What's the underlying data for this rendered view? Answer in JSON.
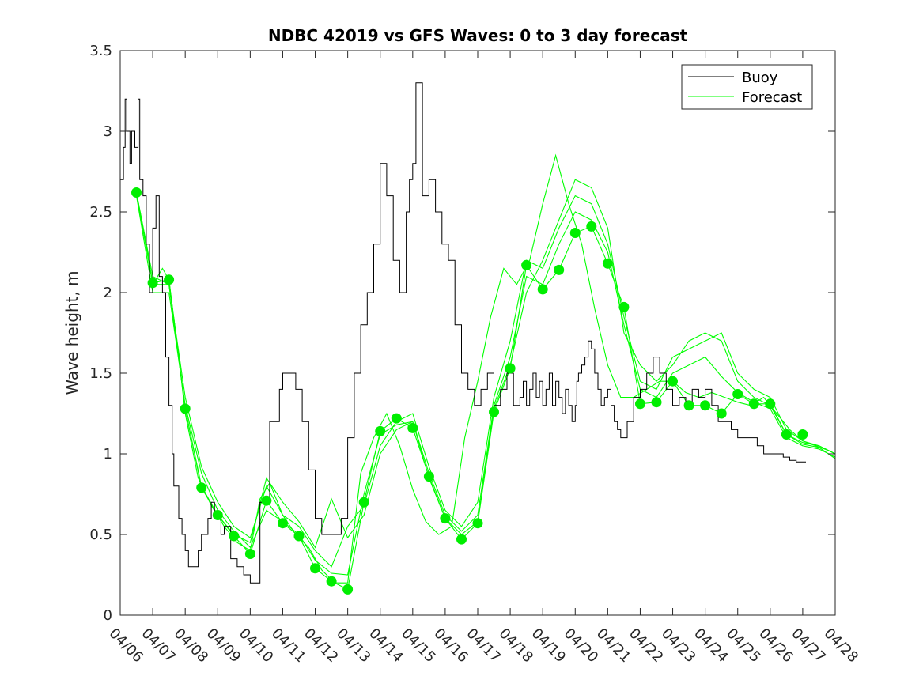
{
  "chart_data": {
    "type": "line",
    "title": "NDBC 42019 vs GFS Waves: 0 to 3 day forecast",
    "xlabel": "",
    "ylabel": "Wave height, m",
    "x_ticks": [
      "04/06",
      "04/07",
      "04/08",
      "04/09",
      "04/10",
      "04/11",
      "04/12",
      "04/13",
      "04/14",
      "04/15",
      "04/16",
      "04/17",
      "04/18",
      "04/19",
      "04/20",
      "04/21",
      "04/22",
      "04/23",
      "04/24",
      "04/25",
      "04/26",
      "04/27",
      "04/28"
    ],
    "xlim": [
      0,
      22
    ],
    "x_unit": "days since 04/06",
    "ylim": [
      0,
      3.5
    ],
    "y_ticks": [
      "0",
      "0.5",
      "1",
      "1.5",
      "2",
      "2.5",
      "3",
      "3.5"
    ],
    "grid": false,
    "legend": {
      "placement": "top-right",
      "entries": [
        "Buoy",
        "Forecast"
      ]
    },
    "colors": {
      "buoy": "#000000",
      "forecast": "#00ff00",
      "dots": "#00ee00"
    },
    "series": [
      {
        "name": "Buoy",
        "x": [
          0,
          0.1,
          0.15,
          0.2,
          0.3,
          0.35,
          0.45,
          0.55,
          0.6,
          0.7,
          0.8,
          0.9,
          1.0,
          1.1,
          1.2,
          1.3,
          1.4,
          1.5,
          1.6,
          1.65,
          1.8,
          1.9,
          2.0,
          2.1,
          2.2,
          2.3,
          2.4,
          2.5,
          2.6,
          2.7,
          2.8,
          2.9,
          3.0,
          3.1,
          3.2,
          3.4,
          3.6,
          3.8,
          4.0,
          4.3,
          4.6,
          4.9,
          5.0,
          5.2,
          5.4,
          5.6,
          5.8,
          6.0,
          6.2,
          6.4,
          6.6,
          6.8,
          7.0,
          7.2,
          7.4,
          7.6,
          7.8,
          8.0,
          8.2,
          8.4,
          8.6,
          8.8,
          8.9,
          9.0,
          9.1,
          9.3,
          9.5,
          9.7,
          9.9,
          10.1,
          10.3,
          10.5,
          10.7,
          10.9,
          11.1,
          11.3,
          11.5,
          11.7,
          11.9,
          12.1,
          12.3,
          12.4,
          12.5,
          12.6,
          12.7,
          12.8,
          12.9,
          13.0,
          13.1,
          13.2,
          13.3,
          13.4,
          13.5,
          13.6,
          13.7,
          13.8,
          13.9,
          14.0,
          14.05,
          14.1,
          14.2,
          14.3,
          14.4,
          14.5,
          14.6,
          14.7,
          14.8,
          14.9,
          15.0,
          15.1,
          15.2,
          15.3,
          15.4,
          15.6,
          15.8,
          16.0,
          16.2,
          16.4,
          16.6,
          16.8,
          17.0,
          17.2,
          17.4,
          17.6,
          17.8,
          18.0,
          18.2,
          18.4,
          18.6,
          18.8,
          19.0,
          19.2,
          19.4,
          19.6,
          19.8,
          20.0,
          20.2,
          20.4,
          20.6,
          20.8,
          21.0,
          21.1
        ],
        "y": [
          2.7,
          2.9,
          3.2,
          3.0,
          2.8,
          3.0,
          2.9,
          3.2,
          2.7,
          2.6,
          2.3,
          2.0,
          2.4,
          2.6,
          2.1,
          2.0,
          1.6,
          1.3,
          1.0,
          0.8,
          0.6,
          0.5,
          0.4,
          0.3,
          0.3,
          0.3,
          0.4,
          0.5,
          0.5,
          0.6,
          0.7,
          0.6,
          0.6,
          0.5,
          0.55,
          0.35,
          0.3,
          0.25,
          0.2,
          0.7,
          1.2,
          1.4,
          1.5,
          1.5,
          1.4,
          1.2,
          0.9,
          0.6,
          0.5,
          0.5,
          0.5,
          0.6,
          1.1,
          1.5,
          1.8,
          2.0,
          2.3,
          2.8,
          2.6,
          2.2,
          2.0,
          2.5,
          2.7,
          2.8,
          3.3,
          2.6,
          2.7,
          2.5,
          2.3,
          2.2,
          1.8,
          1.5,
          1.4,
          1.3,
          1.4,
          1.5,
          1.3,
          1.4,
          1.5,
          1.3,
          1.35,
          1.45,
          1.3,
          1.4,
          1.5,
          1.35,
          1.45,
          1.3,
          1.4,
          1.5,
          1.3,
          1.45,
          1.35,
          1.25,
          1.4,
          1.3,
          1.2,
          1.3,
          1.45,
          1.5,
          1.55,
          1.6,
          1.7,
          1.65,
          1.5,
          1.4,
          1.3,
          1.35,
          1.4,
          1.3,
          1.2,
          1.15,
          1.1,
          1.2,
          1.35,
          1.4,
          1.5,
          1.6,
          1.5,
          1.4,
          1.3,
          1.35,
          1.3,
          1.4,
          1.35,
          1.4,
          1.3,
          1.2,
          1.2,
          1.15,
          1.1,
          1.1,
          1.1,
          1.05,
          1.0,
          1.0,
          1.0,
          0.98,
          0.96,
          0.95,
          0.95,
          0.95
        ]
      },
      {
        "name": "Forecast",
        "x": [
          0.5,
          0.7,
          1.0,
          1.2,
          1.5,
          1.8,
          2.0,
          2.3,
          2.5,
          3.0,
          3.5,
          4.0,
          4.5,
          5.0,
          5.5,
          6.0,
          6.5,
          7.0,
          7.5,
          8.0,
          8.5,
          9.0,
          9.5,
          10.0,
          10.5,
          11.0,
          11.5,
          12.0,
          12.5,
          13.0,
          13.5,
          14.0,
          14.5,
          15.0,
          15.5,
          16.0,
          16.5,
          17.0,
          17.5,
          18.0,
          18.5,
          19.0,
          19.5,
          20.0,
          20.5,
          21.0,
          21.5,
          22.0
        ],
        "y": [
          2.62,
          2.4,
          2.06,
          2.1,
          2.08,
          1.7,
          1.28,
          0.95,
          0.79,
          0.62,
          0.49,
          0.38,
          0.71,
          0.57,
          0.49,
          0.29,
          0.21,
          0.16,
          0.7,
          1.14,
          1.22,
          1.16,
          0.86,
          0.6,
          0.47,
          0.57,
          1.26,
          1.53,
          2.17,
          2.02,
          2.14,
          2.37,
          2.41,
          2.18,
          1.91,
          1.31,
          1.32,
          1.45,
          1.3,
          1.3,
          1.25,
          1.37,
          1.31,
          1.31,
          1.12,
          1.07,
          1.05,
          1.0
        ]
      }
    ],
    "forecast_runs": [
      {
        "x": [
          0.5,
          0.8,
          1.0,
          1.3,
          1.5,
          1.8,
          2.0,
          2.4,
          2.8,
          3.2,
          3.6,
          4.0,
          4.3,
          4.6,
          5.0,
          5.4,
          5.8,
          6.2,
          6.6,
          7.0,
          7.4,
          7.8,
          8.2,
          8.6,
          9.0,
          9.4,
          9.8,
          10.2,
          10.6,
          11.0,
          11.4,
          11.8,
          12.2,
          12.6,
          13.0,
          13.4,
          13.8,
          14.2,
          14.6,
          15.0,
          15.4,
          15.8,
          16.2,
          16.6,
          17.0,
          17.4,
          17.8,
          18.2,
          18.6,
          19.0,
          19.4,
          19.8,
          20.2,
          20.6,
          21.0,
          21.4,
          21.8,
          22.0
        ],
        "y": [
          2.62,
          2.3,
          2.05,
          2.15,
          2.08,
          1.6,
          1.25,
          0.85,
          0.68,
          0.55,
          0.45,
          0.4,
          0.72,
          0.82,
          0.62,
          0.5,
          0.42,
          0.28,
          0.2,
          0.2,
          0.88,
          1.1,
          1.25,
          1.05,
          0.78,
          0.58,
          0.5,
          0.55,
          1.1,
          1.45,
          1.85,
          2.15,
          2.05,
          2.2,
          2.55,
          2.85,
          2.55,
          2.3,
          1.9,
          1.55,
          1.35,
          1.35,
          1.4,
          1.45,
          1.45,
          1.38,
          1.35,
          1.38,
          1.35,
          1.32,
          1.3,
          1.35,
          1.25,
          1.15,
          1.08,
          1.05,
          1.02,
          1.0
        ]
      },
      {
        "x": [
          0.5,
          1.0,
          1.5,
          2.0,
          2.5,
          3.0,
          3.5,
          4.0,
          4.5,
          5.0,
          5.5,
          6.0,
          6.5,
          7.0,
          7.5,
          8.0,
          8.5,
          9.0,
          9.5,
          10.0,
          10.5,
          11.0,
          11.5,
          12.0,
          12.5,
          13.0,
          13.5,
          14.0,
          14.5,
          15.0,
          15.5,
          16.0,
          16.5,
          17.0,
          17.5,
          18.0,
          18.5,
          19.0,
          19.5,
          20.0,
          20.5,
          21.0,
          21.5,
          22.0
        ],
        "y": [
          2.6,
          2.0,
          2.0,
          1.3,
          0.88,
          0.65,
          0.52,
          0.42,
          0.65,
          0.58,
          0.5,
          0.34,
          0.26,
          0.25,
          0.75,
          1.12,
          1.18,
          1.2,
          0.88,
          0.62,
          0.52,
          0.62,
          1.3,
          1.6,
          2.1,
          2.05,
          2.3,
          2.5,
          2.45,
          2.25,
          1.8,
          1.4,
          1.35,
          1.5,
          1.55,
          1.6,
          1.48,
          1.38,
          1.32,
          1.28,
          1.1,
          1.05,
          1.03,
          0.98
        ]
      },
      {
        "x": [
          0.5,
          1.0,
          1.5,
          2.0,
          2.5,
          3.0,
          3.5,
          4.0,
          4.5,
          5.0,
          5.5,
          6.0,
          6.5,
          7.0,
          7.5,
          8.0,
          8.5,
          9.0,
          9.5,
          10.0,
          10.5,
          11.0,
          11.5,
          12.0,
          12.5,
          13.0,
          13.5,
          14.0,
          14.5,
          15.0,
          15.5,
          16.0,
          16.5,
          17.0,
          17.5,
          18.0,
          18.5,
          19.0,
          19.5,
          20.0,
          20.5,
          21.0,
          21.5,
          22.0
        ],
        "y": [
          2.62,
          2.1,
          2.05,
          1.35,
          0.92,
          0.7,
          0.55,
          0.48,
          0.8,
          0.62,
          0.55,
          0.4,
          0.3,
          0.55,
          0.68,
          1.05,
          1.2,
          1.25,
          0.92,
          0.65,
          0.55,
          0.7,
          1.35,
          1.7,
          2.2,
          2.15,
          2.4,
          2.6,
          2.55,
          2.3,
          1.85,
          1.45,
          1.4,
          1.6,
          1.65,
          1.7,
          1.75,
          1.5,
          1.4,
          1.35,
          1.15,
          1.08,
          1.05,
          1.0
        ]
      },
      {
        "x": [
          0.5,
          1.0,
          1.5,
          2.0,
          2.5,
          3.0,
          3.5,
          4.0,
          4.5,
          5.0,
          5.5,
          6.0,
          6.5,
          7.0,
          7.5,
          8.0,
          8.5,
          9.0,
          9.5,
          10.0,
          10.5,
          11.0,
          11.5,
          12.0,
          12.5,
          13.0,
          13.5,
          14.0,
          14.5,
          15.0,
          15.5,
          16.0,
          16.5,
          17.0,
          17.5,
          18.0,
          18.5,
          19.0,
          19.5,
          20.0,
          20.5,
          21.0,
          21.5,
          22.0
        ],
        "y": [
          2.62,
          2.05,
          2.05,
          1.28,
          0.8,
          0.62,
          0.5,
          0.45,
          0.85,
          0.7,
          0.58,
          0.42,
          0.72,
          0.48,
          0.62,
          1.0,
          1.15,
          1.2,
          0.85,
          0.6,
          0.5,
          0.58,
          1.28,
          1.55,
          2.0,
          2.2,
          2.45,
          2.7,
          2.65,
          2.4,
          1.75,
          1.55,
          1.45,
          1.55,
          1.7,
          1.75,
          1.7,
          1.45,
          1.35,
          1.3,
          1.12,
          1.06,
          1.04,
          0.97
        ]
      },
      {
        "x": [
          0.5,
          1.0,
          1.5,
          2.0,
          2.5,
          3.0,
          3.5,
          4.0,
          4.5,
          5.0,
          5.5,
          6.0,
          6.5,
          7.0,
          7.5,
          8.0,
          8.5,
          9.0,
          9.5,
          10.0,
          10.5,
          11.0,
          11.5,
          12.0,
          12.5,
          13.0,
          13.5,
          14.0,
          14.5,
          15.0,
          15.5,
          16.0,
          16.5,
          17.0,
          17.5,
          18.0,
          18.5,
          19.0,
          19.5,
          20.0,
          20.5,
          21.0,
          21.5,
          22.0
        ],
        "y": [
          2.62,
          2.06,
          2.08,
          1.28,
          0.79,
          0.62,
          0.49,
          0.38,
          0.71,
          0.57,
          0.49,
          0.29,
          0.21,
          0.16,
          0.7,
          1.14,
          1.22,
          1.16,
          0.86,
          0.6,
          0.47,
          0.57,
          1.26,
          1.53,
          2.17,
          2.02,
          2.14,
          2.37,
          2.41,
          2.18,
          1.91,
          1.31,
          1.32,
          1.45,
          1.3,
          1.3,
          1.25,
          1.37,
          1.31,
          1.31,
          1.12,
          1.07,
          1.05,
          1.0
        ]
      }
    ],
    "dots": {
      "x": [
        0.5,
        1.0,
        1.5,
        2.0,
        2.5,
        3.0,
        3.5,
        4.0,
        4.5,
        5.0,
        5.5,
        6.0,
        6.5,
        7.0,
        7.5,
        8.0,
        8.5,
        9.0,
        9.5,
        10.0,
        10.5,
        11.0,
        11.5,
        12.0,
        12.5,
        13.0,
        13.5,
        14.0,
        14.5,
        15.0,
        15.5,
        16.0,
        16.5,
        17.0,
        17.5,
        18.0,
        18.5,
        19.0,
        19.5,
        20.0,
        20.5,
        21.0
      ],
      "y": [
        2.62,
        2.06,
        2.08,
        1.28,
        0.79,
        0.62,
        0.49,
        0.38,
        0.71,
        0.57,
        0.49,
        0.29,
        0.21,
        0.16,
        0.7,
        1.14,
        1.22,
        1.16,
        0.86,
        0.6,
        0.47,
        0.57,
        1.26,
        1.53,
        2.17,
        2.02,
        2.14,
        2.37,
        2.41,
        2.18,
        1.91,
        1.31,
        1.32,
        1.45,
        1.3,
        1.3,
        1.25,
        1.37,
        1.31,
        1.31,
        1.12,
        1.12
      ]
    }
  }
}
